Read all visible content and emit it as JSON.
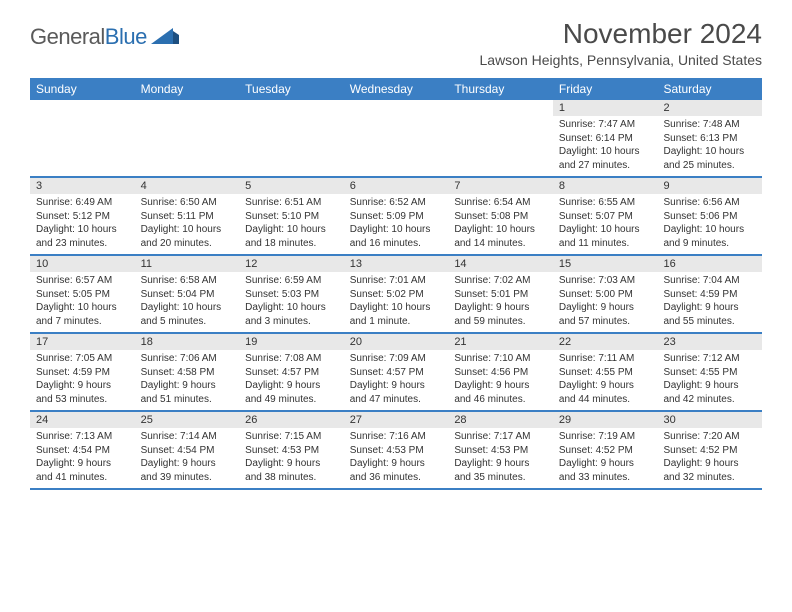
{
  "logo": {
    "word1": "General",
    "word2": "Blue"
  },
  "title": "November 2024",
  "location": "Lawson Heights, Pennsylvania, United States",
  "colors": {
    "header_bg": "#3b7fc4",
    "header_text": "#ffffff",
    "daynum_bg": "#e8e8e8",
    "border": "#3b7fc4",
    "logo_gray": "#5a5a5a",
    "logo_blue": "#2b6fb0"
  },
  "days": [
    "Sunday",
    "Monday",
    "Tuesday",
    "Wednesday",
    "Thursday",
    "Friday",
    "Saturday"
  ],
  "weeks": [
    [
      {
        "n": "",
        "sr": "",
        "ss": "",
        "dl": ""
      },
      {
        "n": "",
        "sr": "",
        "ss": "",
        "dl": ""
      },
      {
        "n": "",
        "sr": "",
        "ss": "",
        "dl": ""
      },
      {
        "n": "",
        "sr": "",
        "ss": "",
        "dl": ""
      },
      {
        "n": "",
        "sr": "",
        "ss": "",
        "dl": ""
      },
      {
        "n": "1",
        "sr": "Sunrise: 7:47 AM",
        "ss": "Sunset: 6:14 PM",
        "dl": "Daylight: 10 hours and 27 minutes."
      },
      {
        "n": "2",
        "sr": "Sunrise: 7:48 AM",
        "ss": "Sunset: 6:13 PM",
        "dl": "Daylight: 10 hours and 25 minutes."
      }
    ],
    [
      {
        "n": "3",
        "sr": "Sunrise: 6:49 AM",
        "ss": "Sunset: 5:12 PM",
        "dl": "Daylight: 10 hours and 23 minutes."
      },
      {
        "n": "4",
        "sr": "Sunrise: 6:50 AM",
        "ss": "Sunset: 5:11 PM",
        "dl": "Daylight: 10 hours and 20 minutes."
      },
      {
        "n": "5",
        "sr": "Sunrise: 6:51 AM",
        "ss": "Sunset: 5:10 PM",
        "dl": "Daylight: 10 hours and 18 minutes."
      },
      {
        "n": "6",
        "sr": "Sunrise: 6:52 AM",
        "ss": "Sunset: 5:09 PM",
        "dl": "Daylight: 10 hours and 16 minutes."
      },
      {
        "n": "7",
        "sr": "Sunrise: 6:54 AM",
        "ss": "Sunset: 5:08 PM",
        "dl": "Daylight: 10 hours and 14 minutes."
      },
      {
        "n": "8",
        "sr": "Sunrise: 6:55 AM",
        "ss": "Sunset: 5:07 PM",
        "dl": "Daylight: 10 hours and 11 minutes."
      },
      {
        "n": "9",
        "sr": "Sunrise: 6:56 AM",
        "ss": "Sunset: 5:06 PM",
        "dl": "Daylight: 10 hours and 9 minutes."
      }
    ],
    [
      {
        "n": "10",
        "sr": "Sunrise: 6:57 AM",
        "ss": "Sunset: 5:05 PM",
        "dl": "Daylight: 10 hours and 7 minutes."
      },
      {
        "n": "11",
        "sr": "Sunrise: 6:58 AM",
        "ss": "Sunset: 5:04 PM",
        "dl": "Daylight: 10 hours and 5 minutes."
      },
      {
        "n": "12",
        "sr": "Sunrise: 6:59 AM",
        "ss": "Sunset: 5:03 PM",
        "dl": "Daylight: 10 hours and 3 minutes."
      },
      {
        "n": "13",
        "sr": "Sunrise: 7:01 AM",
        "ss": "Sunset: 5:02 PM",
        "dl": "Daylight: 10 hours and 1 minute."
      },
      {
        "n": "14",
        "sr": "Sunrise: 7:02 AM",
        "ss": "Sunset: 5:01 PM",
        "dl": "Daylight: 9 hours and 59 minutes."
      },
      {
        "n": "15",
        "sr": "Sunrise: 7:03 AM",
        "ss": "Sunset: 5:00 PM",
        "dl": "Daylight: 9 hours and 57 minutes."
      },
      {
        "n": "16",
        "sr": "Sunrise: 7:04 AM",
        "ss": "Sunset: 4:59 PM",
        "dl": "Daylight: 9 hours and 55 minutes."
      }
    ],
    [
      {
        "n": "17",
        "sr": "Sunrise: 7:05 AM",
        "ss": "Sunset: 4:59 PM",
        "dl": "Daylight: 9 hours and 53 minutes."
      },
      {
        "n": "18",
        "sr": "Sunrise: 7:06 AM",
        "ss": "Sunset: 4:58 PM",
        "dl": "Daylight: 9 hours and 51 minutes."
      },
      {
        "n": "19",
        "sr": "Sunrise: 7:08 AM",
        "ss": "Sunset: 4:57 PM",
        "dl": "Daylight: 9 hours and 49 minutes."
      },
      {
        "n": "20",
        "sr": "Sunrise: 7:09 AM",
        "ss": "Sunset: 4:57 PM",
        "dl": "Daylight: 9 hours and 47 minutes."
      },
      {
        "n": "21",
        "sr": "Sunrise: 7:10 AM",
        "ss": "Sunset: 4:56 PM",
        "dl": "Daylight: 9 hours and 46 minutes."
      },
      {
        "n": "22",
        "sr": "Sunrise: 7:11 AM",
        "ss": "Sunset: 4:55 PM",
        "dl": "Daylight: 9 hours and 44 minutes."
      },
      {
        "n": "23",
        "sr": "Sunrise: 7:12 AM",
        "ss": "Sunset: 4:55 PM",
        "dl": "Daylight: 9 hours and 42 minutes."
      }
    ],
    [
      {
        "n": "24",
        "sr": "Sunrise: 7:13 AM",
        "ss": "Sunset: 4:54 PM",
        "dl": "Daylight: 9 hours and 41 minutes."
      },
      {
        "n": "25",
        "sr": "Sunrise: 7:14 AM",
        "ss": "Sunset: 4:54 PM",
        "dl": "Daylight: 9 hours and 39 minutes."
      },
      {
        "n": "26",
        "sr": "Sunrise: 7:15 AM",
        "ss": "Sunset: 4:53 PM",
        "dl": "Daylight: 9 hours and 38 minutes."
      },
      {
        "n": "27",
        "sr": "Sunrise: 7:16 AM",
        "ss": "Sunset: 4:53 PM",
        "dl": "Daylight: 9 hours and 36 minutes."
      },
      {
        "n": "28",
        "sr": "Sunrise: 7:17 AM",
        "ss": "Sunset: 4:53 PM",
        "dl": "Daylight: 9 hours and 35 minutes."
      },
      {
        "n": "29",
        "sr": "Sunrise: 7:19 AM",
        "ss": "Sunset: 4:52 PM",
        "dl": "Daylight: 9 hours and 33 minutes."
      },
      {
        "n": "30",
        "sr": "Sunrise: 7:20 AM",
        "ss": "Sunset: 4:52 PM",
        "dl": "Daylight: 9 hours and 32 minutes."
      }
    ]
  ]
}
